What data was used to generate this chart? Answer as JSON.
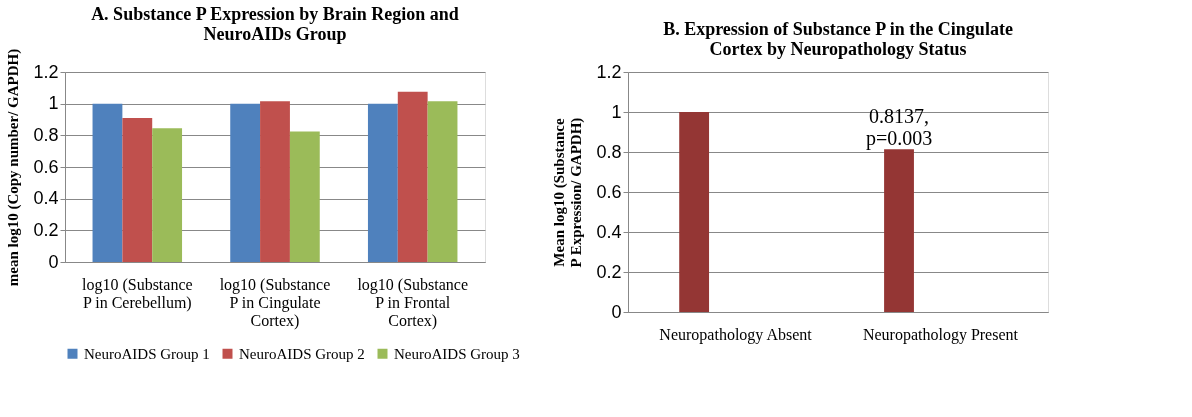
{
  "chart_data": [
    {
      "type": "bar",
      "title": "A. Substance P Expression by Brain Region and NeuroAIDs Group",
      "ylabel": "mean log10 (Copy number/ GAPDH)",
      "categories": [
        "log10 (Substance P in Cerebellum)",
        "log10 (Substance P in Cingulate Cortex)",
        "log10 (Substance P in Frontal Cortex)"
      ],
      "series": [
        {
          "name": "NeuroAIDS Group 1",
          "color": "#4f81bd",
          "values": [
            1.0,
            1.0,
            1.0
          ]
        },
        {
          "name": "NeuroAIDS Group 2",
          "color": "#c0504d",
          "values": [
            0.91,
            1.015,
            1.075
          ]
        },
        {
          "name": "NeuroAIDS Group 3",
          "color": "#9bbb59",
          "values": [
            0.845,
            0.825,
            1.015
          ]
        }
      ],
      "ylim": [
        0,
        1.2
      ],
      "yticks": [
        0,
        0.2,
        0.4,
        0.6,
        0.8,
        1,
        1.2
      ],
      "grid": "y",
      "legend": "bottom"
    },
    {
      "type": "bar",
      "title": "B. Expression of Substance P in the Cingulate Cortex by Neuropathology Status",
      "ylabel": "Mean log10 (Substance P Expression/ GAPDH)",
      "categories": [
        "Neuropathology Absent",
        "Neuropathology Present"
      ],
      "series": [
        {
          "color": "#943634",
          "values": [
            1.0,
            0.8137
          ],
          "value_labels": [
            null,
            "0.8137, p=0.003"
          ]
        }
      ],
      "ylim": [
        0,
        1.2
      ],
      "yticks": [
        0,
        0.2,
        0.4,
        0.6,
        0.8,
        1,
        1.2
      ],
      "grid": "y"
    }
  ]
}
